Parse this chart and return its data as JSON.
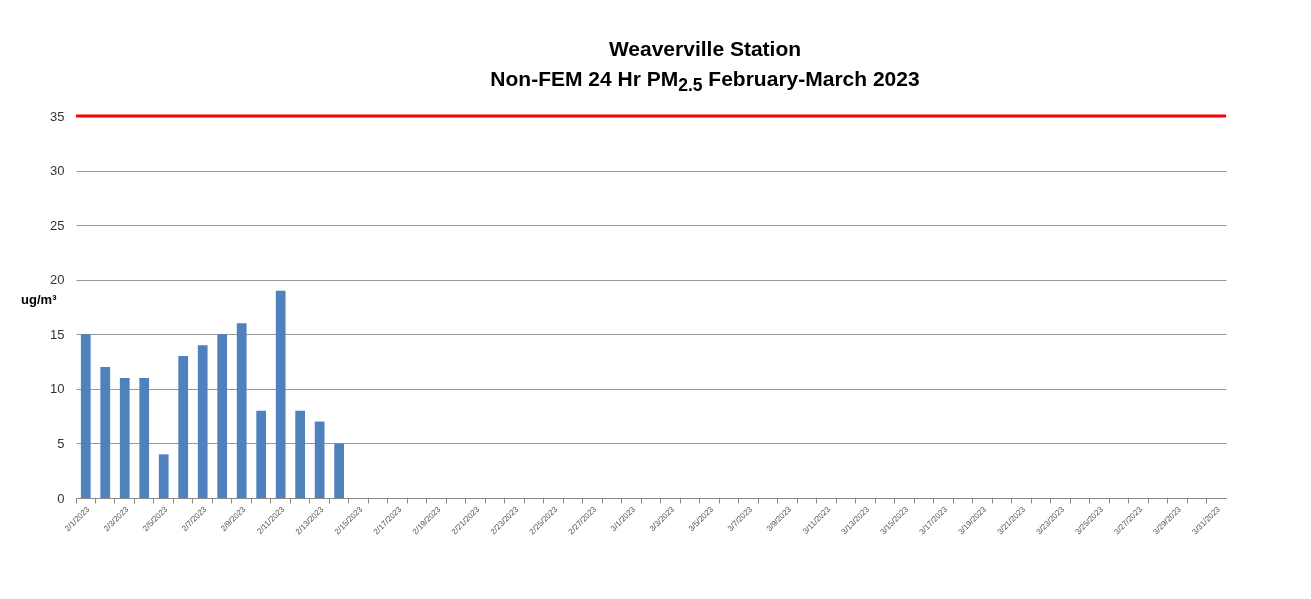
{
  "chart_data": {
    "type": "bar",
    "title": "Weaverville Station",
    "subtitle": "Non-FEM 24 Hr PM$_{2.5}$ February-March  2023",
    "ylabel": "ug/m³",
    "categories": [
      "2/1/2023",
      null,
      "2/3/2023",
      null,
      "2/5/2023",
      null,
      "2/7/2023",
      null,
      "2/9/2023",
      null,
      "2/11/2023",
      null,
      "2/13/2023",
      null,
      "2/15/2023",
      null,
      "2/17/2023",
      null,
      "2/19/2023",
      null,
      "2/21/2023",
      null,
      "2/23/2023",
      null,
      "2/25/2023",
      null,
      "2/27/2023",
      null,
      "3/1/2023",
      null,
      "3/3/2023",
      null,
      "3/5/2023",
      null,
      "3/7/2023",
      null,
      "3/9/2023",
      null,
      "3/11/2023",
      null,
      "3/13/2023",
      null,
      "3/15/2023",
      null,
      "3/17/2023",
      null,
      "3/19/2023",
      null,
      "3/21/2023",
      null,
      "3/23/2023",
      null,
      "3/25/2023",
      null,
      "3/27/2023",
      null,
      "3/29/2023",
      null,
      "3/31/2023"
    ],
    "values": [
      15,
      12,
      11,
      11,
      4,
      13,
      14,
      15,
      16,
      8,
      19,
      8,
      7,
      5,
      null,
      null,
      null,
      null,
      null,
      null,
      null,
      null,
      null,
      null,
      null,
      null,
      null,
      null,
      null,
      null,
      null,
      null,
      null,
      null,
      null,
      null,
      null,
      null,
      null,
      null,
      null,
      null,
      null,
      null,
      null,
      null,
      null,
      null,
      null,
      null,
      null,
      null,
      null,
      null,
      null,
      null,
      null,
      null,
      null
    ],
    "color": "#4f81bd",
    "ylim": [
      0,
      35
    ],
    "yticks": [
      0,
      5,
      10,
      15,
      20,
      25,
      30,
      35
    ],
    "grid": "y",
    "ref_lines": [
      {
        "axis": "y",
        "value": 35,
        "color": "#ff0000"
      }
    ]
  }
}
